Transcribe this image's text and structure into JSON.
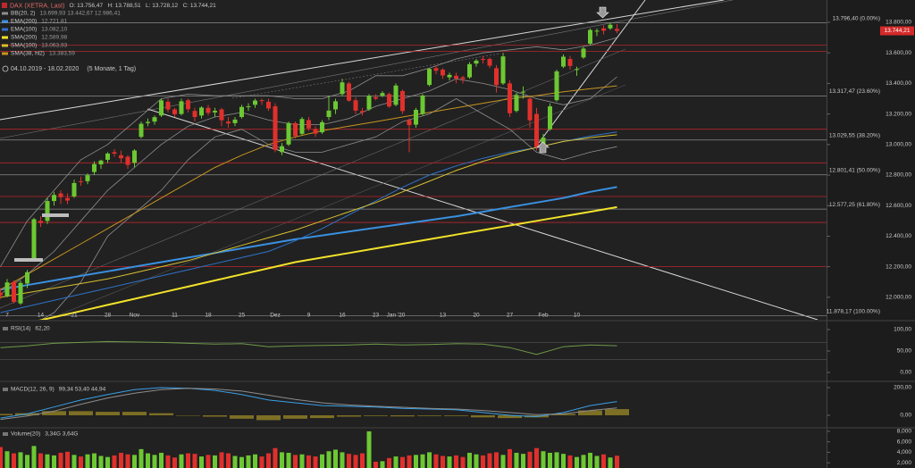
{
  "chart_data": [
    {
      "type": "candlestick",
      "title": "DAX (XETRA, Last)",
      "ohlc_readout": [
        "O: 13.756,47",
        "H: 13.788,51",
        "L: 13.728,12",
        "C: 13.744,21"
      ],
      "period": "04.10.2019 - 18.02.2020",
      "period_note": "(5 Monate, 1 Tag)",
      "categories": [
        null,
        "7",
        null,
        null,
        null,
        null,
        "14",
        null,
        null,
        null,
        null,
        "21",
        null,
        null,
        null,
        null,
        "28",
        null,
        null,
        null,
        "Nov",
        null,
        null,
        null,
        null,
        null,
        "11",
        null,
        null,
        null,
        null,
        "18",
        null,
        null,
        null,
        null,
        "25",
        null,
        null,
        null,
        null,
        "Dez",
        null,
        null,
        null,
        null,
        "9",
        null,
        null,
        null,
        null,
        "16",
        null,
        null,
        null,
        null,
        "23",
        null,
        null,
        "Jan '20",
        null,
        null,
        null,
        null,
        null,
        null,
        "13",
        null,
        null,
        null,
        null,
        "20",
        null,
        null,
        null,
        null,
        "27",
        null,
        null,
        null,
        null,
        "Feb",
        null,
        null,
        null,
        null,
        "10",
        null,
        null,
        null,
        null,
        null,
        null
      ],
      "open": [
        12030,
        12010,
        12100,
        11960,
        12090,
        12250,
        12500,
        12500,
        12630,
        12680,
        12650,
        12660,
        12760,
        12760,
        12820,
        12870,
        12900,
        12950,
        12930,
        12920,
        12880,
        13050,
        13140,
        13150,
        13190,
        13280,
        13230,
        13200,
        13290,
        13220,
        13190,
        13240,
        13210,
        13230,
        13150,
        13140,
        13180,
        13250,
        13260,
        13290,
        13280,
        13250,
        12950,
        13000,
        13140,
        13070,
        13160,
        13100,
        13080,
        13180,
        13230,
        13330,
        13400,
        13290,
        13220,
        13230,
        13310,
        13320,
        13330,
        13260,
        13350,
        13160,
        13130,
        13200,
        13390,
        13500,
        13490,
        13440,
        13450,
        13440,
        13440,
        13530,
        13560,
        13560,
        13500,
        13400,
        13400,
        13220,
        13340,
        13300,
        13200,
        13000,
        13100,
        13290,
        13510,
        13560,
        13490,
        13570,
        13660,
        13740,
        13760,
        13760,
        13756.47
      ],
      "high": [
        12060,
        12120,
        12110,
        12110,
        12180,
        12520,
        12530,
        12650,
        12690,
        12700,
        12680,
        12770,
        12790,
        12810,
        12890,
        12900,
        12950,
        12970,
        12960,
        12930,
        12970,
        13150,
        13170,
        13190,
        13300,
        13300,
        13240,
        13300,
        13300,
        13240,
        13250,
        13260,
        13240,
        13240,
        13180,
        13180,
        13260,
        13270,
        13300,
        13300,
        13300,
        13270,
        13010,
        13150,
        13150,
        13180,
        13180,
        13120,
        13160,
        13320,
        13300,
        13430,
        13410,
        13310,
        13240,
        13330,
        13330,
        13350,
        13340,
        13400,
        13360,
        13170,
        13240,
        13330,
        13500,
        13520,
        13500,
        13470,
        13470,
        13450,
        13540,
        13560,
        13580,
        13570,
        13520,
        13600,
        13420,
        13340,
        13380,
        13310,
        13240,
        13070,
        13270,
        13490,
        13590,
        13580,
        13510,
        13640,
        13760,
        13760,
        13780,
        13800,
        13788.51
      ],
      "low": [
        11990,
        12000,
        11960,
        11950,
        12060,
        12240,
        12460,
        12480,
        12600,
        12610,
        12610,
        12650,
        12730,
        12740,
        12800,
        12840,
        12880,
        12920,
        12880,
        12840,
        12850,
        13040,
        13120,
        13130,
        13180,
        13210,
        13180,
        13190,
        13210,
        13150,
        13170,
        13190,
        13180,
        13120,
        13110,
        13120,
        13170,
        13220,
        13240,
        13260,
        13220,
        12950,
        12930,
        12990,
        13040,
        13060,
        13090,
        13050,
        13070,
        13160,
        13200,
        13320,
        13280,
        13200,
        13190,
        13220,
        13290,
        13310,
        13240,
        13250,
        13200,
        12950,
        13110,
        13190,
        13380,
        13460,
        13430,
        13420,
        13400,
        13400,
        13430,
        13510,
        13530,
        13500,
        13340,
        13390,
        13180,
        13210,
        13300,
        13110,
        12960,
        12950,
        13090,
        13280,
        13500,
        13490,
        13450,
        13560,
        13650,
        13710,
        13720,
        13750,
        13728.12
      ],
      "close": [
        12013,
        12097,
        11970,
        12094,
        12164,
        12511,
        12486,
        12630,
        12670,
        12655,
        12633,
        12748,
        12754,
        12799,
        12872,
        12895,
        12941,
        12940,
        12910,
        12867,
        12961,
        13136,
        13148,
        13179,
        13289,
        13229,
        13198,
        13283,
        13231,
        13180,
        13242,
        13207,
        13221,
        13159,
        13138,
        13163,
        13246,
        13250,
        13288,
        13287,
        13236,
        12965,
        12989,
        13140,
        13055,
        13167,
        13106,
        13071,
        13146,
        13222,
        13283,
        13407,
        13287,
        13222,
        13211,
        13319,
        13300,
        13337,
        13249,
        13386,
        13219,
        13127,
        13227,
        13321,
        13495,
        13483,
        13452,
        13456,
        13432,
        13429,
        13526,
        13549,
        13555,
        13516,
        13389,
        13577,
        13205,
        13324,
        13346,
        13158,
        12982,
        13045,
        13250,
        13479,
        13575,
        13514,
        13494,
        13628,
        13750,
        13745,
        13745,
        13784,
        13744.21
      ],
      "up_color": "#6cc832",
      "down_color": "#e0302c",
      "ylim": [
        11853,
        13946
      ],
      "yticks": [
        {
          "value": 12000,
          "label": "12.000,00"
        },
        {
          "value": 12200,
          "label": "12.200,00"
        },
        {
          "value": 12400,
          "label": "12.400,00"
        },
        {
          "value": 12600,
          "label": "12.600,00"
        },
        {
          "value": 12800,
          "label": "12.800,00"
        },
        {
          "value": 13000,
          "label": "13.000,00"
        },
        {
          "value": 13200,
          "label": "13.200,00"
        },
        {
          "value": 13400,
          "label": "13.400,00"
        },
        {
          "value": 13600,
          "label": "13.600,00"
        },
        {
          "value": 13800,
          "label": "13.800,00"
        }
      ],
      "last_price": {
        "value": 13744.21,
        "label": "13.744,21"
      },
      "fib_color": "#8c8c8c",
      "fib_levels": [
        {
          "value": 13796.4,
          "label": "13.796,40 (0.00%)"
        },
        {
          "value": 13317.47,
          "label": "13.317,47 (23.60%)"
        },
        {
          "value": 13029.55,
          "label": "13.029,55 (38.20%)"
        },
        {
          "value": 12801.41,
          "label": "12.801,41 (50.00%)"
        },
        {
          "value": 12577.25,
          "label": "12.577,25 (61.80%)"
        },
        {
          "value": 11878.17,
          "label": "11.878,17 (100.00%)"
        }
      ],
      "level_color": "#b8262a",
      "levels": [
        13650,
        13610,
        13100,
        12880,
        12660,
        12490,
        12200
      ],
      "overlays": [
        {
          "name": "BB(20, 2)",
          "legend": "13.699,93  13.442,67  12.986,41",
          "color": "#8f8f8f",
          "bands": [
            [
              12200,
              12500,
              12700,
              12900,
              13000,
              13150,
              13300,
              13330,
              13320,
              13320,
              13320,
              13300,
              13300,
              13350,
              13450,
              13450,
              13500,
              13560,
              13600,
              13620,
              13640,
              13620,
              13650,
              13700
            ],
            [
              12020,
              12150,
              12300,
              12500,
              12700,
              12850,
              13000,
              13120,
              13180,
              13210,
              13160,
              13130,
              13130,
              13170,
              13250,
              13300,
              13350,
              13430,
              13400,
              13360,
              13300,
              13260,
              13300,
              13443
            ],
            [
              11850,
              11800,
              11900,
              12100,
              12400,
              12550,
              12700,
              12900,
              13050,
              13100,
              13000,
              12950,
              12950,
              13000,
              13050,
              13150,
              13200,
              13300,
              13200,
              13100,
              12950,
              12900,
              12950,
              12986
            ]
          ]
        },
        {
          "name": "EMA(200)",
          "legend": "12.721,81",
          "color": "#3a90e0",
          "width": 2,
          "values": [
            12050,
            12080,
            12110,
            12140,
            12170,
            12200,
            12230,
            12260,
            12290,
            12320,
            12350,
            12380,
            12405,
            12430,
            12455,
            12480,
            12505,
            12530,
            12560,
            12590,
            12620,
            12650,
            12690,
            12722
          ]
        },
        {
          "name": "EMA(100)",
          "legend": "13.082,10",
          "color": "#2f73c8",
          "width": 1,
          "values": [
            11900,
            11940,
            11980,
            12020,
            12060,
            12100,
            12140,
            12180,
            12220,
            12260,
            12300,
            12370,
            12450,
            12540,
            12630,
            12720,
            12800,
            12860,
            12910,
            12950,
            12980,
            13020,
            13055,
            13082
          ]
        },
        {
          "name": "SMA(200)",
          "legend": "12.589,98",
          "color": "#f2e22a",
          "width": 2,
          "values": [
            11790,
            11830,
            11870,
            11910,
            11950,
            11990,
            12030,
            12070,
            12110,
            12150,
            12190,
            12230,
            12260,
            12290,
            12320,
            12350,
            12380,
            12410,
            12440,
            12470,
            12500,
            12530,
            12560,
            12590
          ]
        },
        {
          "name": "SMA(100)",
          "legend": "13.063,93",
          "color": "#d8c030",
          "width": 1,
          "values": [
            12000,
            12030,
            12060,
            12090,
            12120,
            12160,
            12200,
            12240,
            12290,
            12340,
            12390,
            12440,
            12500,
            12560,
            12620,
            12690,
            12760,
            12830,
            12890,
            12940,
            12980,
            13020,
            13045,
            13064
          ]
        },
        {
          "name": "SMA(38, hl2)",
          "legend": "13.383,59",
          "color": "#c89420",
          "width": 1,
          "values": [
            12050,
            12150,
            12250,
            12350,
            12450,
            12550,
            12650,
            12750,
            12850,
            12930,
            13000,
            13050,
            13090,
            13120,
            13150,
            13180,
            13210,
            13240,
            13270,
            13300,
            13320,
            13345,
            13365,
            13384
          ]
        }
      ]
    },
    {
      "type": "line",
      "title": "RSI(14)",
      "readout": "62,20",
      "ylim": [
        -18.75,
        118.75
      ],
      "yticks": [
        {
          "value": 100,
          "label": "100,00"
        },
        {
          "value": 50,
          "label": "50,00"
        },
        {
          "value": 0,
          "label": "0,00"
        }
      ],
      "levels": [
        70,
        30
      ],
      "series": [
        {
          "color": "#6f9a48",
          "values": [
            58,
            62,
            68,
            70,
            72,
            71,
            70,
            68,
            66,
            67,
            60,
            62,
            63,
            64,
            66,
            64,
            65,
            67,
            66,
            58,
            42,
            60,
            64,
            62.2
          ]
        }
      ]
    },
    {
      "type": "line",
      "title": "MACD(12, 26, 9)",
      "readout": "99,34  53,40  44,94",
      "ylim": [
        -83.9,
        238.7
      ],
      "yticks": [
        {
          "value": 200,
          "label": "200,00"
        },
        {
          "value": 0,
          "label": "0,00"
        }
      ],
      "histogram": {
        "color": "#7d6f24",
        "values": [
          10,
          15,
          30,
          30,
          25,
          25,
          15,
          0,
          -10,
          -25,
          -35,
          -25,
          -20,
          -10,
          -5,
          -8,
          -5,
          -5,
          -15,
          -20,
          -15,
          10,
          35,
          44.94
        ]
      },
      "series": [
        {
          "color": "#3aa0e8",
          "values": [
            -20,
            10,
            60,
            110,
            150,
            185,
            200,
            195,
            180,
            150,
            110,
            90,
            70,
            65,
            60,
            50,
            45,
            40,
            20,
            0,
            -10,
            20,
            70,
            99.34
          ]
        },
        {
          "color": "#8c8c8c",
          "values": [
            -30,
            -5,
            30,
            80,
            125,
            160,
            185,
            195,
            190,
            175,
            145,
            115,
            90,
            75,
            65,
            58,
            50,
            45,
            35,
            20,
            5,
            10,
            35,
            53.4
          ]
        }
      ]
    },
    {
      "type": "bar",
      "title": "Volume(20)",
      "readout": "3,34G  3,64G",
      "ylim": [
        1,
        8.5
      ],
      "yticks": [
        {
          "value": 8,
          "label": "8,000"
        },
        {
          "value": 6,
          "label": "6,000"
        },
        {
          "value": 4,
          "label": "4,000"
        },
        {
          "value": 2,
          "label": "2,000"
        }
      ],
      "up_color": "#6cc832",
      "down_color": "#e0302c",
      "values": [
        5.0,
        4.2,
        3.8,
        4.0,
        3.5,
        5.2,
        3.8,
        3.6,
        3.4,
        3.9,
        4.1,
        3.5,
        3.2,
        3.6,
        3.8,
        3.3,
        3.1,
        3.4,
        3.9,
        3.6,
        3.5,
        4.6,
        3.8,
        3.5,
        3.9,
        3.4,
        3.0,
        3.6,
        3.8,
        3.7,
        3.2,
        3.5,
        3.4,
        4.0,
        3.8,
        3.3,
        3.1,
        3.4,
        3.6,
        3.2,
        3.8,
        4.8,
        4.0,
        3.9,
        3.5,
        3.6,
        3.4,
        3.2,
        3.6,
        4.2,
        4.5,
        4.0,
        3.7,
        3.5,
        3.8,
        8.0,
        2.2,
        2.3,
        2.9,
        3.2,
        3.1,
        3.4,
        3.5,
        3.6,
        4.0,
        3.6,
        3.3,
        3.2,
        3.4,
        3.1,
        3.9,
        3.6,
        3.4,
        3.8,
        4.0,
        3.5,
        4.6,
        3.9,
        3.7,
        4.1,
        4.8,
        4.2,
        3.9,
        4.0,
        3.7,
        3.4,
        3.1,
        3.5,
        3.9,
        3.3,
        3.6,
        3.0,
        3.34
      ]
    }
  ]
}
